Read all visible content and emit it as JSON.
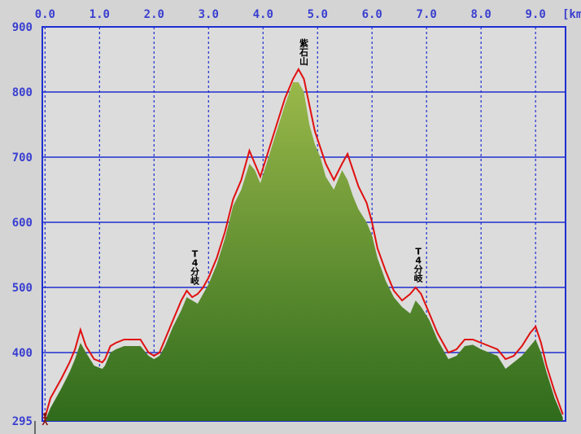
{
  "chart_data": {
    "type": "area",
    "title": "",
    "xlabel": "",
    "ylabel": "",
    "x_unit": "[km]",
    "xlim": [
      -0.05,
      9.55
    ],
    "ylim": [
      295,
      900
    ],
    "x_ticks": [
      "0.0",
      "1.0",
      "2.0",
      "3.0",
      "4.0",
      "5.0",
      "6.0",
      "7.0",
      "8.0",
      "9.0"
    ],
    "y_ticks": [
      "900",
      "800",
      "700",
      "600",
      "500",
      "400",
      "295"
    ],
    "grid": true,
    "colors": {
      "background": "#d4d4d4",
      "plot_background": "#dcdcdc",
      "grid": "#1f2fd0",
      "axis_text": "#3a3fd0",
      "terrain_top": "#9ab84a",
      "terrain_bottom": "#2f6b1c",
      "route_line": "#e01010"
    },
    "terrain": {
      "x": [
        0.0,
        0.1,
        0.2,
        0.3,
        0.45,
        0.55,
        0.65,
        0.75,
        0.9,
        1.05,
        1.1,
        1.2,
        1.3,
        1.45,
        1.6,
        1.75,
        1.9,
        2.0,
        2.1,
        2.2,
        2.35,
        2.5,
        2.6,
        2.7,
        2.8,
        2.9,
        3.0,
        3.15,
        3.3,
        3.45,
        3.6,
        3.75,
        3.85,
        3.95,
        4.1,
        4.25,
        4.4,
        4.55,
        4.65,
        4.75,
        4.85,
        4.95,
        5.05,
        5.15,
        5.3,
        5.45,
        5.55,
        5.65,
        5.75,
        5.9,
        6.0,
        6.1,
        6.25,
        6.4,
        6.55,
        6.7,
        6.8,
        6.9,
        7.05,
        7.2,
        7.4,
        7.55,
        7.7,
        7.85,
        8.0,
        8.15,
        8.3,
        8.45,
        8.6,
        8.75,
        8.9,
        9.0,
        9.1,
        9.2,
        9.35,
        9.5
      ],
      "y": [
        295,
        315,
        330,
        345,
        370,
        390,
        415,
        400,
        380,
        375,
        380,
        400,
        405,
        410,
        410,
        410,
        395,
        390,
        395,
        410,
        440,
        465,
        485,
        480,
        475,
        490,
        505,
        535,
        575,
        625,
        650,
        690,
        680,
        660,
        700,
        740,
        780,
        815,
        815,
        800,
        750,
        720,
        700,
        670,
        650,
        680,
        665,
        640,
        620,
        600,
        580,
        545,
        510,
        485,
        470,
        460,
        480,
        470,
        450,
        420,
        390,
        395,
        410,
        412,
        405,
        400,
        395,
        375,
        385,
        395,
        410,
        420,
        400,
        370,
        330,
        300
      ]
    },
    "route": {
      "x": [
        0.0,
        0.1,
        0.2,
        0.3,
        0.45,
        0.55,
        0.65,
        0.75,
        0.9,
        1.05,
        1.1,
        1.2,
        1.3,
        1.45,
        1.6,
        1.75,
        1.9,
        2.0,
        2.1,
        2.2,
        2.35,
        2.5,
        2.6,
        2.7,
        2.8,
        2.9,
        3.0,
        3.15,
        3.3,
        3.45,
        3.6,
        3.75,
        3.85,
        3.95,
        4.1,
        4.25,
        4.4,
        4.55,
        4.65,
        4.75,
        4.85,
        4.95,
        5.05,
        5.15,
        5.3,
        5.45,
        5.55,
        5.65,
        5.75,
        5.9,
        6.0,
        6.1,
        6.25,
        6.4,
        6.55,
        6.7,
        6.8,
        6.9,
        7.05,
        7.2,
        7.4,
        7.55,
        7.7,
        7.85,
        8.0,
        8.15,
        8.3,
        8.45,
        8.6,
        8.75,
        8.9,
        9.0,
        9.1,
        9.2,
        9.35,
        9.5
      ],
      "y": [
        300,
        330,
        345,
        360,
        385,
        405,
        435,
        410,
        390,
        385,
        390,
        410,
        415,
        420,
        420,
        420,
        400,
        395,
        400,
        420,
        450,
        480,
        495,
        485,
        490,
        500,
        515,
        545,
        585,
        635,
        665,
        710,
        690,
        670,
        710,
        750,
        790,
        820,
        835,
        820,
        780,
        740,
        715,
        690,
        665,
        690,
        705,
        680,
        655,
        630,
        600,
        560,
        525,
        495,
        480,
        490,
        500,
        490,
        460,
        430,
        400,
        405,
        420,
        420,
        415,
        410,
        405,
        390,
        395,
        410,
        430,
        440,
        415,
        380,
        340,
        305
      ]
    },
    "annotations": [
      {
        "text": "T4分岐",
        "x": 2.75,
        "y": 498
      },
      {
        "text": "T4分岐",
        "x": 6.85,
        "y": 502
      },
      {
        "text": "紫石山",
        "x": 4.75,
        "y": 835
      }
    ],
    "start_marker": {
      "x": 0.0,
      "y": 295,
      "icon": "hiker-icon"
    }
  }
}
